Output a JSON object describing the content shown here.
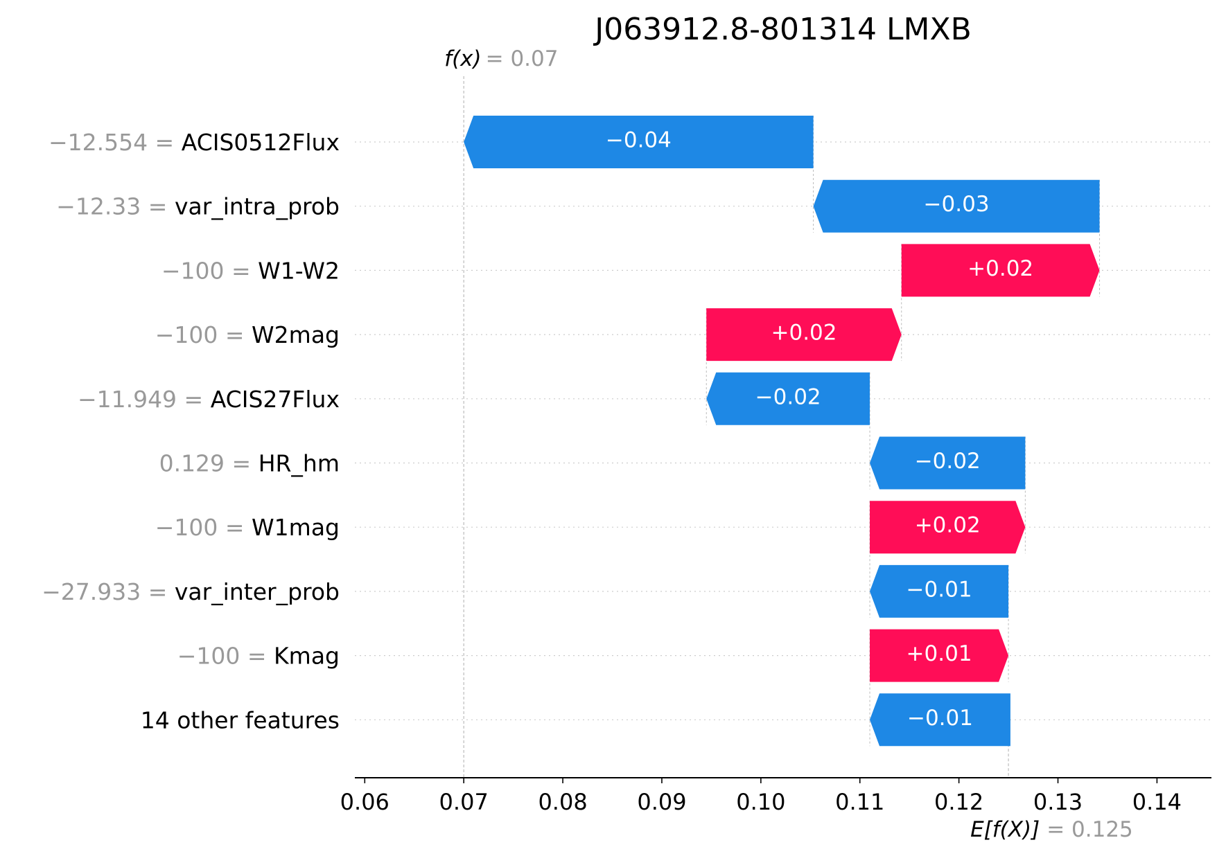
{
  "chart_data": {
    "type": "waterfall",
    "title": "J063912.8-801314 LMXB",
    "base_value": 0.125,
    "output_value": 0.07,
    "base_label": "E[f(X)]",
    "output_label": "f(x)",
    "base_value_text": "= 0.125",
    "output_value_text": "= 0.07",
    "xlim": [
      0.059,
      0.1455
    ],
    "xticks": [
      0.06,
      0.07,
      0.08,
      0.09,
      0.1,
      0.11,
      0.12,
      0.13,
      0.14
    ],
    "xtick_labels": [
      "0.06",
      "0.07",
      "0.08",
      "0.09",
      "0.10",
      "0.11",
      "0.12",
      "0.13",
      "0.14"
    ],
    "grid": "dotted horizontal row lines",
    "colors": {
      "positive": "#ff0d57",
      "negative": "#1e88e5",
      "value_text": "#999999"
    },
    "features": [
      {
        "value": "−12.554",
        "name": "ACIS0512Flux",
        "start": 0.1053,
        "end": 0.07,
        "label": "−0.04"
      },
      {
        "value": "−12.33",
        "name": "var_intra_prob",
        "start": 0.1342,
        "end": 0.1053,
        "label": "−0.03"
      },
      {
        "value": "−100",
        "name": "W1-W2",
        "start": 0.1142,
        "end": 0.1342,
        "label": "+0.02"
      },
      {
        "value": "−100",
        "name": "W2mag",
        "start": 0.0945,
        "end": 0.1142,
        "label": "+0.02"
      },
      {
        "value": "−11.949",
        "name": "ACIS27Flux",
        "start": 0.111,
        "end": 0.0945,
        "label": "−0.02"
      },
      {
        "value": "0.129",
        "name": "HR_hm",
        "start": 0.1267,
        "end": 0.111,
        "label": "−0.02"
      },
      {
        "value": "−100",
        "name": "W1mag",
        "start": 0.111,
        "end": 0.1267,
        "label": "+0.02"
      },
      {
        "value": "−27.933",
        "name": "var_inter_prob",
        "start": 0.125,
        "end": 0.111,
        "label": "−0.01"
      },
      {
        "value": "−100",
        "name": "Kmag",
        "start": 0.111,
        "end": 0.125,
        "label": "+0.01"
      },
      {
        "value": "",
        "name": "14 other features",
        "start": 0.1252,
        "end": 0.111,
        "label": "−0.01"
      }
    ]
  }
}
